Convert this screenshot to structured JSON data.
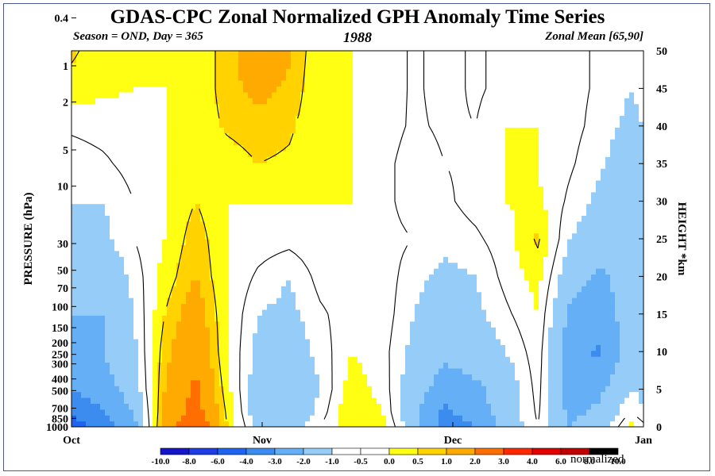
{
  "title": "GDAS-CPC Zonal Normalized GPH Anomaly Time Series",
  "subtitle_left": "Season = OND, Day = 365",
  "subtitle_center": "1988",
  "subtitle_right": "Zonal Mean [65,90]",
  "colorbar_unit": "normalized",
  "colors": {
    "neg": [
      "#1414c8",
      "#1e3ce6",
      "#1e64f0",
      "#3c8cf0",
      "#64aff5",
      "#96cdf8"
    ],
    "zero": "#ffffff",
    "pos": [
      "#ffff14",
      "#ffd200",
      "#ffaa00",
      "#ff6e00",
      "#ff2800",
      "#e10000",
      "#c00000"
    ]
  },
  "chart_data": {
    "type": "heatmap",
    "title": "GDAS-CPC Zonal Normalized GPH Anomaly Time Series",
    "xlabel": "",
    "ylabel_left": "PRESSURE (hPa)",
    "ylabel_right": "HEIGHT *km",
    "x_ticks": [
      "Oct",
      "Nov",
      "Dec",
      "Jan"
    ],
    "y_left_ticks": [
      "0.4",
      "1",
      "2",
      "5",
      "10",
      "30",
      "50",
      "70",
      "100",
      "150",
      "200",
      "250",
      "300",
      "400",
      "500",
      "700",
      "850",
      "1000"
    ],
    "y_right_ticks": [
      "0",
      "5",
      "10",
      "15",
      "20",
      "25",
      "30",
      "35",
      "40",
      "45",
      "50"
    ],
    "ylim_km": [
      0,
      50
    ],
    "colorbar_levels": [
      "-10.0",
      "-8.0",
      "-6.0",
      "-4.0",
      "-3.0",
      "-2.0",
      "-1.0",
      "-0.5",
      "0.0",
      "0.5",
      "1.0",
      "2.0",
      "3.0",
      "4.0",
      "6.0",
      "8.0",
      "10.0"
    ],
    "days": [
      0,
      5,
      10,
      15,
      20,
      25,
      30,
      35,
      40,
      45,
      50,
      55,
      60,
      65,
      70,
      75,
      80,
      85,
      90,
      92
    ],
    "heights_km": [
      0,
      2,
      5,
      10,
      15,
      20,
      25,
      30,
      35,
      40,
      45,
      50
    ],
    "values": [
      [
        -4.5,
        -3.5,
        -2.5,
        1.5,
        3.0,
        0.5,
        -1.2,
        -1.5,
        -0.5,
        0.5,
        0.2,
        -1.5,
        -3.5,
        -3.0,
        -1.5,
        -0.5,
        -2.0,
        -1.5,
        0.2,
        -0.3
      ],
      [
        -4.0,
        -3.0,
        -2.0,
        1.2,
        2.5,
        0.4,
        -1.5,
        -1.8,
        -0.8,
        0.5,
        0.0,
        -1.8,
        -3.2,
        -2.5,
        -1.5,
        -0.4,
        -2.2,
        -1.8,
        -0.5,
        -1.0
      ],
      [
        -3.0,
        -2.5,
        -1.5,
        1.0,
        2.2,
        0.2,
        -1.5,
        -1.8,
        -1.0,
        0.3,
        -0.2,
        -1.5,
        -2.5,
        -2.2,
        -1.5,
        -0.3,
        -2.5,
        -2.2,
        -1.0,
        -1.2
      ],
      [
        -2.2,
        -2.0,
        -1.2,
        0.8,
        1.8,
        0.0,
        -1.2,
        -1.5,
        -0.8,
        0.0,
        -0.3,
        -1.2,
        -1.8,
        -1.5,
        -1.0,
        -0.2,
        -2.5,
        -3.2,
        -1.5,
        -1.5
      ],
      [
        -2.0,
        -2.0,
        -1.0,
        0.5,
        1.5,
        0.0,
        -1.0,
        -1.2,
        -0.6,
        -0.2,
        -0.2,
        -1.0,
        -1.5,
        -1.2,
        -0.6,
        0.0,
        -2.2,
        -2.5,
        -1.5,
        -1.5
      ],
      [
        -1.8,
        -1.8,
        -0.8,
        0.2,
        1.0,
        0.0,
        -0.6,
        -1.0,
        -0.3,
        -0.1,
        -0.2,
        -0.8,
        -1.2,
        -1.0,
        -0.3,
        0.2,
        -1.5,
        -2.2,
        -1.5,
        -1.5
      ],
      [
        -1.5,
        -1.2,
        -0.5,
        0.0,
        0.8,
        0.0,
        -0.2,
        -0.3,
        -0.1,
        0.0,
        -0.3,
        -0.5,
        -0.8,
        -0.6,
        -0.2,
        0.6,
        -1.0,
        -1.5,
        -1.5,
        -1.5
      ],
      [
        -1.0,
        -1.0,
        -0.5,
        0.0,
        0.5,
        0.0,
        0.0,
        0.0,
        0.0,
        0.0,
        -0.3,
        -0.8,
        -0.6,
        -0.3,
        0.0,
        0.1,
        -0.6,
        -1.2,
        -1.5,
        -1.5
      ],
      [
        -0.8,
        -0.6,
        -0.3,
        0.0,
        0.3,
        0.2,
        0.5,
        0.4,
        0.1,
        0.0,
        -0.3,
        -0.8,
        -0.5,
        -0.4,
        0.0,
        0.0,
        -0.4,
        -0.9,
        -1.5,
        -1.2
      ],
      [
        -0.4,
        -0.3,
        -0.2,
        0.0,
        0.1,
        0.6,
        0.8,
        0.6,
        0.1,
        0.0,
        -0.2,
        -0.6,
        -0.4,
        -0.5,
        0.0,
        0.0,
        -0.3,
        -0.7,
        -1.2,
        -1.0
      ],
      [
        0.3,
        0.1,
        0.0,
        0.0,
        0.0,
        0.8,
        1.2,
        0.9,
        0.0,
        0.0,
        -0.1,
        -0.6,
        -0.3,
        -0.6,
        -0.3,
        0.0,
        -0.3,
        -0.6,
        -1.0,
        -0.8
      ],
      [
        0.6,
        0.2,
        0.0,
        0.0,
        0.0,
        0.8,
        1.4,
        1.1,
        0.0,
        0.0,
        -0.1,
        -0.6,
        -0.3,
        -0.6,
        -0.3,
        0.0,
        -0.3,
        -0.6,
        -1.0,
        -0.8
      ]
    ]
  }
}
